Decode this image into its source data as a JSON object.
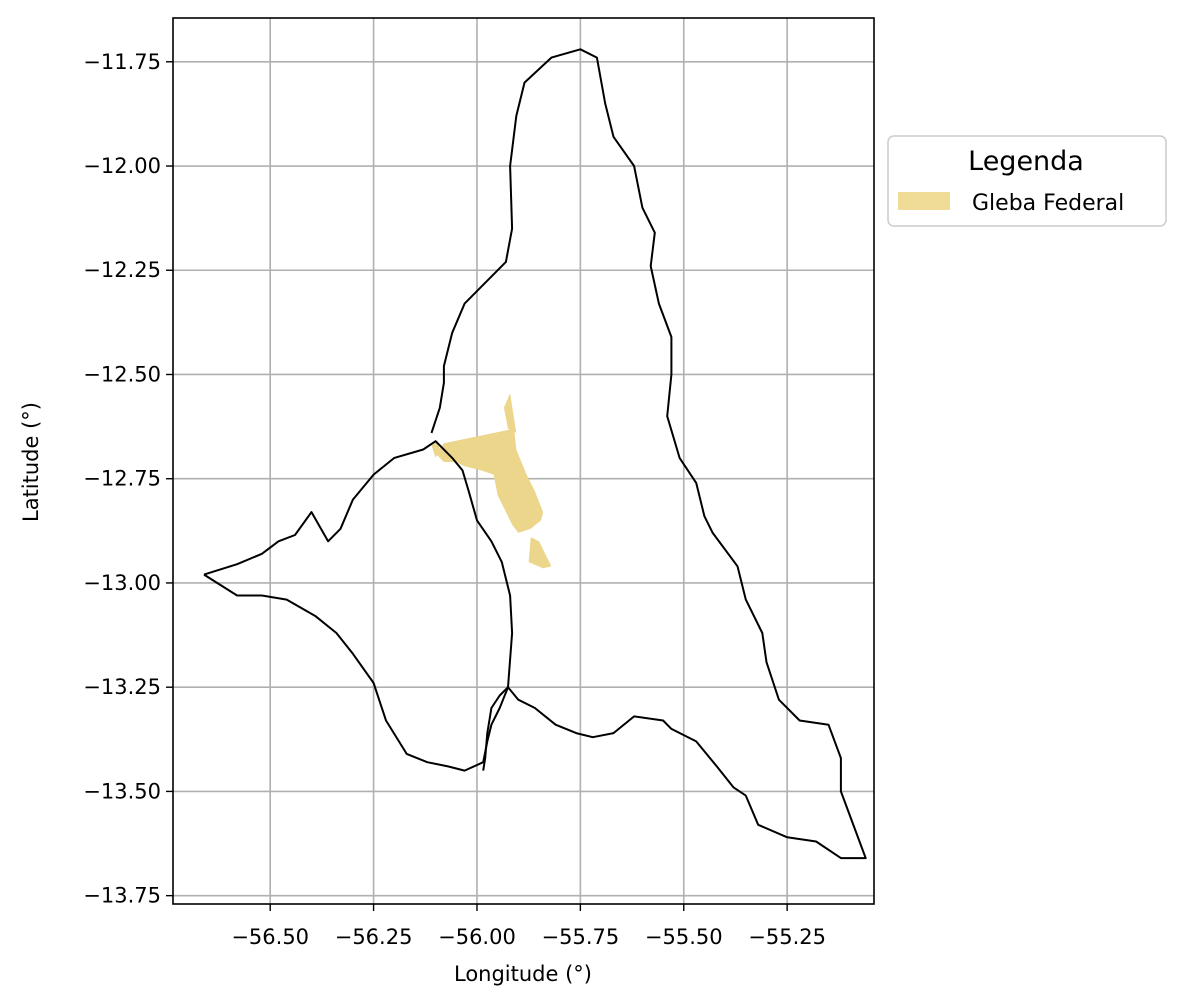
{
  "chart_data": {
    "type": "map",
    "xlabel": "Longitude (°)",
    "ylabel": "Latitude (°)",
    "xlim": [
      -56.735,
      -55.04
    ],
    "ylim": [
      -13.77,
      -11.645
    ],
    "grid": true,
    "x_ticks": [
      -56.5,
      -56.25,
      -56.0,
      -55.75,
      -55.5,
      -55.25
    ],
    "x_tick_labels": [
      "−56.50",
      "−56.25",
      "−56.00",
      "−55.75",
      "−55.50",
      "−55.25"
    ],
    "y_ticks": [
      -11.75,
      -12.0,
      -12.25,
      -12.5,
      -12.75,
      -13.0,
      -13.25,
      -13.5,
      -13.75
    ],
    "y_tick_labels": [
      "−11.75",
      "−12.00",
      "−12.25",
      "−12.50",
      "−12.75",
      "−13.00",
      "−13.25",
      "−13.50",
      "−13.75"
    ],
    "legend": {
      "title": "Legenda",
      "placement": "outside upper-right",
      "entries": [
        {
          "label": "Gleba Federal",
          "color": "#f0dc96"
        }
      ]
    },
    "layers": [
      {
        "name": "boundary-west",
        "kind": "outline",
        "stroke": "#000000",
        "points": [
          [
            -56.66,
            -12.98
          ],
          [
            -56.58,
            -12.955
          ],
          [
            -56.52,
            -12.93
          ],
          [
            -56.48,
            -12.9
          ],
          [
            -56.44,
            -12.885
          ],
          [
            -56.4,
            -12.83
          ],
          [
            -56.36,
            -12.9
          ],
          [
            -56.33,
            -12.87
          ],
          [
            -56.3,
            -12.8
          ],
          [
            -56.25,
            -12.74
          ],
          [
            -56.2,
            -12.7
          ],
          [
            -56.13,
            -12.68
          ],
          [
            -56.1,
            -12.66
          ],
          [
            -56.06,
            -12.7
          ],
          [
            -56.035,
            -12.73
          ],
          [
            -56.02,
            -12.78
          ],
          [
            -56.0,
            -12.85
          ],
          [
            -55.965,
            -12.9
          ],
          [
            -55.94,
            -12.95
          ],
          [
            -55.92,
            -13.03
          ],
          [
            -55.915,
            -13.12
          ],
          [
            -55.925,
            -13.25
          ],
          [
            -55.945,
            -13.3
          ],
          [
            -55.965,
            -13.34
          ],
          [
            -55.975,
            -13.38
          ],
          [
            -55.985,
            -13.43
          ],
          [
            -56.03,
            -13.45
          ],
          [
            -56.07,
            -13.44
          ],
          [
            -56.12,
            -13.43
          ],
          [
            -56.17,
            -13.41
          ],
          [
            -56.22,
            -13.33
          ],
          [
            -56.25,
            -13.24
          ],
          [
            -56.3,
            -13.17
          ],
          [
            -56.34,
            -13.12
          ],
          [
            -56.39,
            -13.08
          ],
          [
            -56.46,
            -13.04
          ],
          [
            -56.52,
            -13.03
          ],
          [
            -56.58,
            -13.03
          ],
          [
            -56.66,
            -12.98
          ]
        ]
      },
      {
        "name": "boundary-east",
        "kind": "outline",
        "stroke": "#000000",
        "points": [
          [
            -56.11,
            -12.64
          ],
          [
            -56.09,
            -12.58
          ],
          [
            -56.08,
            -12.52
          ],
          [
            -56.08,
            -12.48
          ],
          [
            -56.06,
            -12.4
          ],
          [
            -56.03,
            -12.33
          ],
          [
            -56.0,
            -12.3
          ],
          [
            -55.96,
            -12.26
          ],
          [
            -55.93,
            -12.23
          ],
          [
            -55.915,
            -12.15
          ],
          [
            -55.92,
            -12.0
          ],
          [
            -55.905,
            -11.88
          ],
          [
            -55.885,
            -11.8
          ],
          [
            -55.82,
            -11.74
          ],
          [
            -55.75,
            -11.72
          ],
          [
            -55.71,
            -11.74
          ],
          [
            -55.69,
            -11.85
          ],
          [
            -55.67,
            -11.93
          ],
          [
            -55.62,
            -12.0
          ],
          [
            -55.6,
            -12.1
          ],
          [
            -55.57,
            -12.16
          ],
          [
            -55.58,
            -12.24
          ],
          [
            -55.56,
            -12.33
          ],
          [
            -55.53,
            -12.41
          ],
          [
            -55.53,
            -12.5
          ],
          [
            -55.54,
            -12.6
          ],
          [
            -55.51,
            -12.7
          ],
          [
            -55.47,
            -12.76
          ],
          [
            -55.45,
            -12.84
          ],
          [
            -55.43,
            -12.88
          ],
          [
            -55.37,
            -12.96
          ],
          [
            -55.35,
            -13.04
          ],
          [
            -55.31,
            -13.12
          ],
          [
            -55.3,
            -13.19
          ],
          [
            -55.27,
            -13.28
          ],
          [
            -55.22,
            -13.33
          ],
          [
            -55.15,
            -13.34
          ],
          [
            -55.12,
            -13.42
          ],
          [
            -55.12,
            -13.5
          ],
          [
            -55.06,
            -13.66
          ],
          [
            -55.12,
            -13.66
          ],
          [
            -55.18,
            -13.62
          ],
          [
            -55.25,
            -13.61
          ],
          [
            -55.32,
            -13.58
          ],
          [
            -55.35,
            -13.51
          ],
          [
            -55.38,
            -13.49
          ],
          [
            -55.42,
            -13.44
          ],
          [
            -55.47,
            -13.38
          ],
          [
            -55.53,
            -13.35
          ],
          [
            -55.55,
            -13.33
          ],
          [
            -55.62,
            -13.32
          ],
          [
            -55.67,
            -13.36
          ],
          [
            -55.72,
            -13.37
          ],
          [
            -55.76,
            -13.36
          ],
          [
            -55.81,
            -13.34
          ],
          [
            -55.86,
            -13.3
          ],
          [
            -55.9,
            -13.28
          ],
          [
            -55.925,
            -13.25
          ],
          [
            -55.945,
            -13.27
          ],
          [
            -55.965,
            -13.3
          ],
          [
            -55.975,
            -13.36
          ],
          [
            -55.98,
            -13.42
          ],
          [
            -55.985,
            -13.45
          ]
        ]
      },
      {
        "name": "gleba-federal-main",
        "kind": "polygon",
        "fill": "#ecd68b",
        "points": [
          [
            -56.1,
            -12.69
          ],
          [
            -56.08,
            -12.665
          ],
          [
            -55.91,
            -12.63
          ],
          [
            -55.905,
            -12.68
          ],
          [
            -55.88,
            -12.74
          ],
          [
            -55.86,
            -12.78
          ],
          [
            -55.84,
            -12.83
          ],
          [
            -55.845,
            -12.85
          ],
          [
            -55.87,
            -12.87
          ],
          [
            -55.9,
            -12.88
          ],
          [
            -55.915,
            -12.86
          ],
          [
            -55.935,
            -12.82
          ],
          [
            -55.95,
            -12.79
          ],
          [
            -55.96,
            -12.74
          ],
          [
            -55.99,
            -12.73
          ],
          [
            -56.03,
            -12.72
          ],
          [
            -56.05,
            -12.71
          ],
          [
            -56.08,
            -12.71
          ],
          [
            -56.1,
            -12.69
          ]
        ]
      },
      {
        "name": "gleba-federal-north-spur",
        "kind": "polygon",
        "fill": "#ecd68b",
        "points": [
          [
            -55.935,
            -12.58
          ],
          [
            -55.92,
            -12.545
          ],
          [
            -55.905,
            -12.64
          ],
          [
            -55.925,
            -12.63
          ],
          [
            -55.935,
            -12.58
          ]
        ]
      },
      {
        "name": "gleba-federal-west-bits",
        "kind": "polygon",
        "fill": "#ecd68b",
        "points": [
          [
            -56.11,
            -12.67
          ],
          [
            -56.095,
            -12.66
          ],
          [
            -56.09,
            -12.68
          ],
          [
            -56.1,
            -12.7
          ],
          [
            -56.11,
            -12.67
          ]
        ]
      },
      {
        "name": "gleba-federal-south-lobe",
        "kind": "polygon",
        "fill": "#ecd68b",
        "points": [
          [
            -55.87,
            -12.89
          ],
          [
            -55.85,
            -12.9
          ],
          [
            -55.82,
            -12.96
          ],
          [
            -55.84,
            -12.965
          ],
          [
            -55.875,
            -12.95
          ],
          [
            -55.87,
            -12.89
          ]
        ]
      }
    ]
  }
}
